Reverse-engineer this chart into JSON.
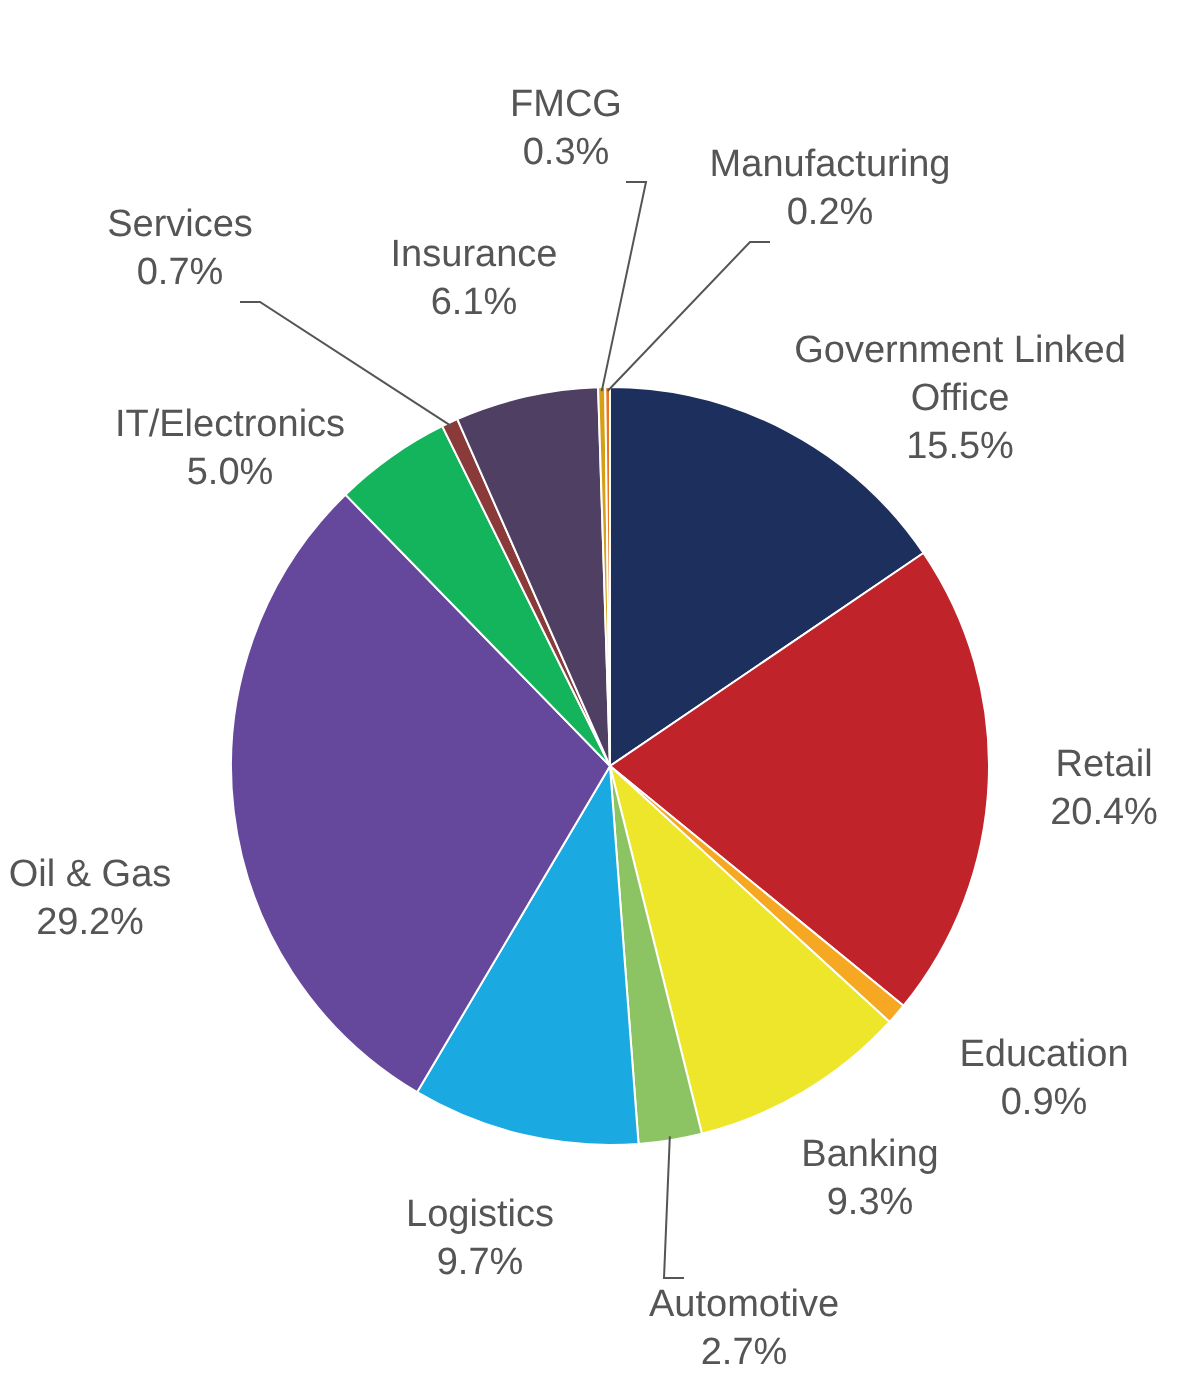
{
  "chart_data": {
    "type": "pie",
    "categories": [
      "Government Linked Office",
      "Retail",
      "Education",
      "Banking",
      "Automotive",
      "Logistics",
      "Oil & Gas",
      "IT/Electronics",
      "Services",
      "Insurance",
      "FMCG",
      "Manufacturing"
    ],
    "values": [
      15.5,
      20.4,
      0.9,
      9.3,
      2.7,
      9.7,
      29.2,
      5.0,
      0.7,
      6.1,
      0.3,
      0.2
    ],
    "colors": [
      "#1d2f5c",
      "#c0232a",
      "#f7a823",
      "#ede62a",
      "#8dc463",
      "#1aa9e0",
      "#65479c",
      "#13b45b",
      "#8b3a3a",
      "#4f3f63",
      "#d4a017",
      "#e87722"
    ],
    "value_labels": [
      "15.5%",
      "20.4%",
      "0.9%",
      "9.3%",
      "2.7%",
      "9.7%",
      "29.2%",
      "5.0%",
      "0.7%",
      "6.1%",
      "0.3%",
      "0.2%"
    ],
    "legend": false
  }
}
